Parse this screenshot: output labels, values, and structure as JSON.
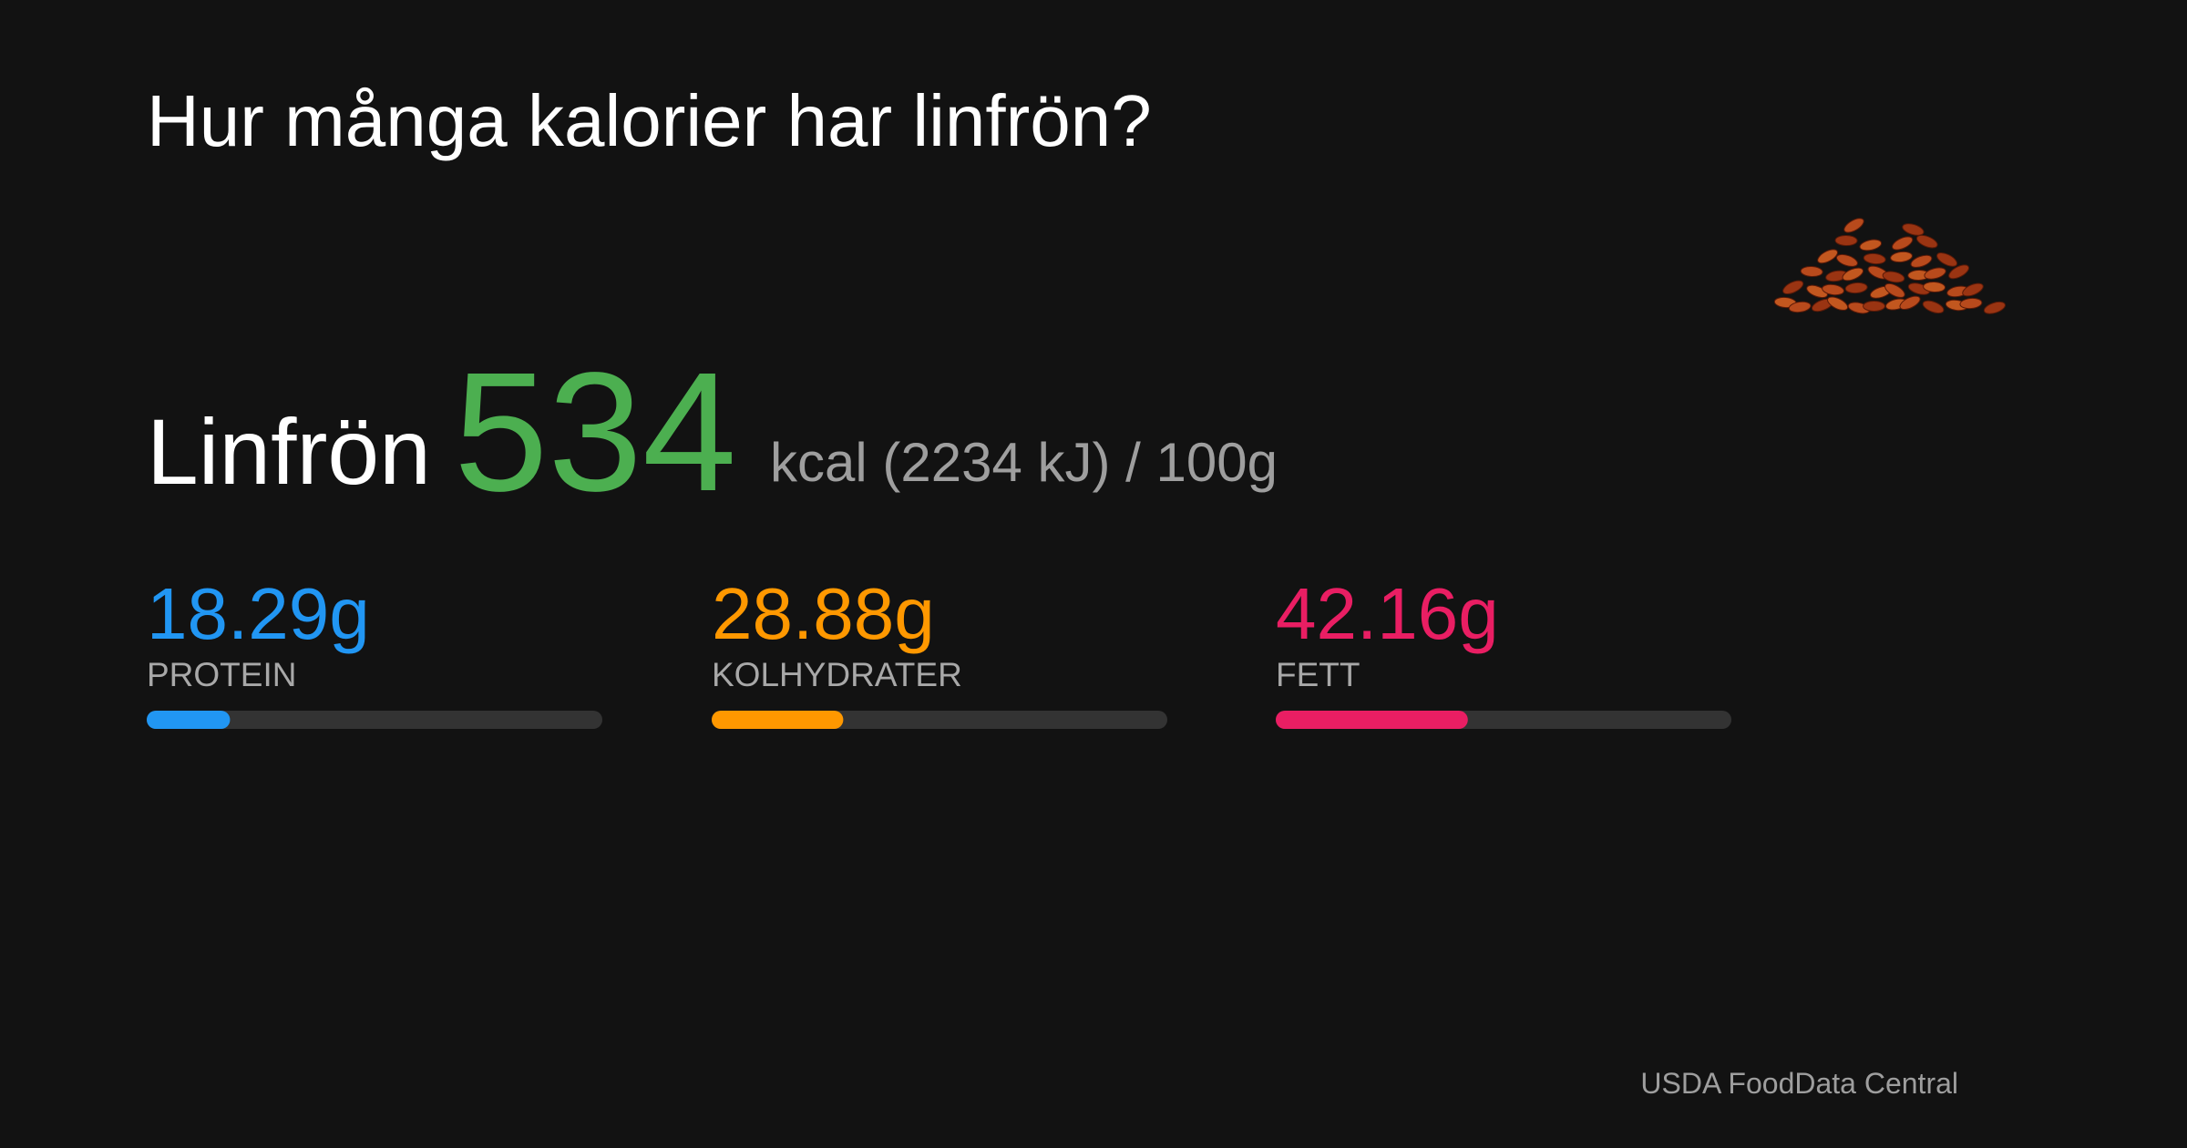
{
  "title": "Hur många kalorier har linfrön?",
  "food": {
    "name": "Linfrön",
    "kcal": 534,
    "unit": "kcal (2234 kJ) / 100g"
  },
  "macros": {
    "xlim": [
      0,
      100
    ],
    "items": [
      {
        "name": "PROTEIN",
        "value": 18.29,
        "value_label": "18.29g",
        "color": "#2196f3"
      },
      {
        "name": "KOLHYDRATER",
        "value": 28.88,
        "value_label": "28.88g",
        "color": "#ff9800"
      },
      {
        "name": "FETT",
        "value": 42.16,
        "value_label": "42.16g",
        "color": "#e91e63"
      }
    ]
  },
  "source": "USDA FoodData Central"
}
